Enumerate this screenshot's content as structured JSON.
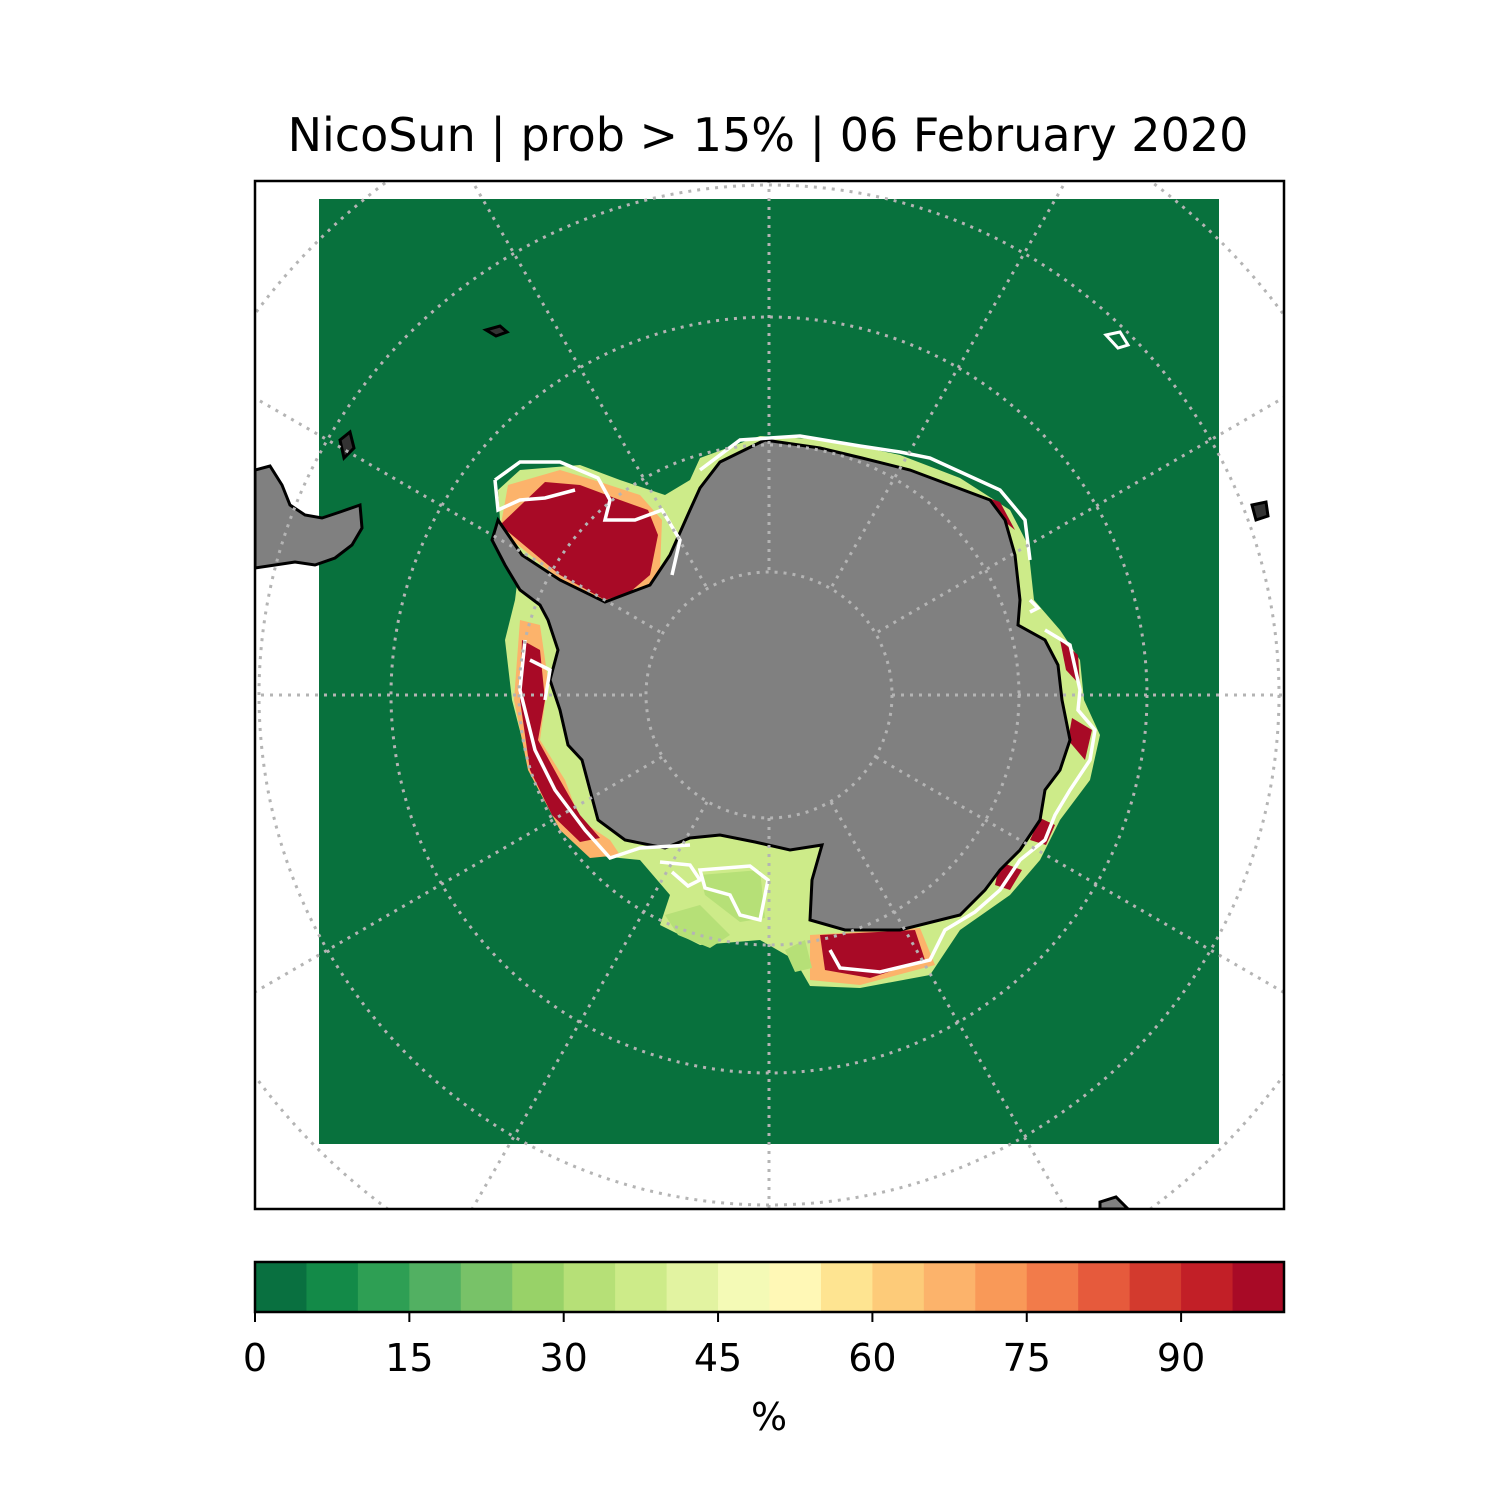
{
  "title": "NicoSun | prob > 15% | 06 February 2020",
  "colors": {
    "ocean": "#08713d",
    "land": "#808080",
    "coastline": "#000000",
    "ice_edge_contour": "#ffffff",
    "graticule": "#b4b4b4"
  },
  "colorbar": {
    "label": "%",
    "range": [
      0,
      100
    ],
    "step": 5,
    "ticks": [
      "0",
      "15",
      "30",
      "45",
      "60",
      "75",
      "90"
    ],
    "tick_values": [
      0,
      15,
      30,
      45,
      60,
      75,
      90
    ],
    "colors": [
      "#097040",
      "#138a48",
      "#2e9f54",
      "#52b062",
      "#78c268",
      "#98d268",
      "#b6e077",
      "#cdeb89",
      "#e2f3a1",
      "#f4fab6",
      "#fff8b6",
      "#fee491",
      "#fdcb79",
      "#fcb36b",
      "#f99958",
      "#f27b4a",
      "#e65a3c",
      "#d33a2e",
      "#c21f27",
      "#a80a26"
    ]
  }
}
